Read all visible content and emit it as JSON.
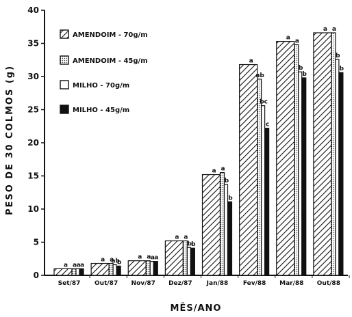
{
  "chart_data": {
    "type": "bar",
    "xlabel": "MÊS/ANO",
    "ylabel": "PESO DE 30 COLMOS (g)",
    "ylim": [
      0,
      40
    ],
    "yticks": [
      "0",
      "5",
      "10",
      "15",
      "20",
      "25",
      "30",
      "35",
      "40"
    ],
    "grid": false,
    "legend_position": "top-left",
    "categories": [
      "Set/87",
      "Out/87",
      "Nov/87",
      "Dez/87",
      "Jan/88",
      "Fev/88",
      "Mar/88",
      "Out/88"
    ],
    "series": [
      {
        "name": "AMENDOIM - 70g/m",
        "pattern": "diagonal-hatch",
        "values": [
          1.0,
          1.8,
          2.2,
          5.2,
          15.2,
          31.8,
          35.3,
          36.6
        ],
        "labels": [
          "a",
          "a",
          "a",
          "a",
          "a",
          "a",
          "a",
          "a"
        ]
      },
      {
        "name": "AMENDOIM - 45g/m",
        "pattern": "dotted",
        "values": [
          1.0,
          1.8,
          2.2,
          5.2,
          15.5,
          29.6,
          34.8,
          36.6
        ],
        "labels": [
          "a",
          "a",
          "a",
          "a",
          "a",
          "ab",
          "a",
          "a"
        ]
      },
      {
        "name": "MILHO - 70g/m",
        "pattern": "white",
        "values": [
          1.0,
          1.6,
          2.1,
          4.2,
          13.7,
          25.6,
          30.7,
          32.6
        ],
        "labels": [
          "a",
          "ab",
          "a",
          "b",
          "b",
          "bc",
          "b",
          "b"
        ]
      },
      {
        "name": "MILHO - 45g/m",
        "pattern": "black",
        "values": [
          1.0,
          1.4,
          2.1,
          4.1,
          11.1,
          22.2,
          29.8,
          30.6
        ],
        "labels": [
          "a",
          "b",
          "a",
          "b",
          "b",
          "c",
          "b",
          "b"
        ]
      }
    ]
  }
}
